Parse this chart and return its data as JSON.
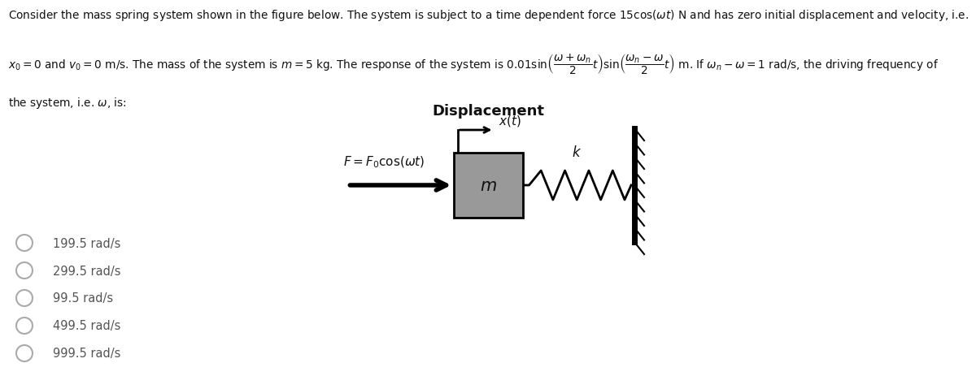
{
  "bg_color": "#ffffff",
  "options": [
    "199.5 rad/s",
    "299.5 rad/s",
    "99.5 rad/s",
    "499.5 rad/s",
    "999.5 rad/s"
  ],
  "mass_color": "#999999",
  "wall_color": "#000000",
  "spring_color": "#000000",
  "arrow_color": "#000000",
  "text_color": "#111111",
  "option_color": "#555555"
}
